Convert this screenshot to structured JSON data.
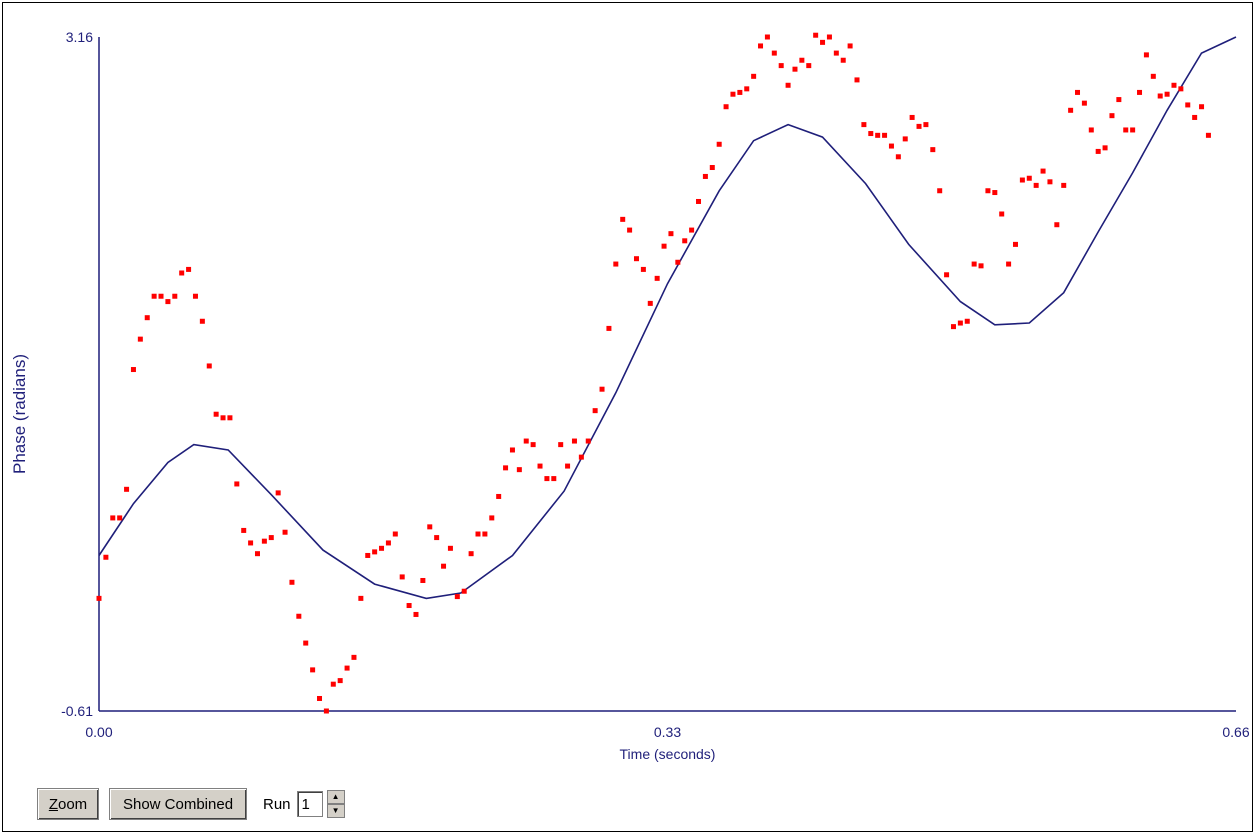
{
  "chart_data": {
    "type": "scatter",
    "xlabel": "Time (seconds)",
    "ylabel": "Phase (radians)",
    "xlim": [
      0.0,
      0.66
    ],
    "ylim": [
      -0.61,
      3.16
    ],
    "x_tick_labels": [
      "0.00",
      "0.33",
      "0.66"
    ],
    "y_tick_labels": [
      "-0.61",
      "3.16"
    ],
    "grid": false,
    "series": [
      {
        "kind": "points",
        "color": "#ff0000",
        "points": [
          [
            0.0,
            0.02
          ],
          [
            0.004,
            0.25
          ],
          [
            0.008,
            0.47
          ],
          [
            0.012,
            0.47
          ],
          [
            0.016,
            0.63
          ],
          [
            0.02,
            1.3
          ],
          [
            0.024,
            1.47
          ],
          [
            0.028,
            1.59
          ],
          [
            0.032,
            1.71
          ],
          [
            0.036,
            1.71
          ],
          [
            0.04,
            1.68
          ],
          [
            0.044,
            1.71
          ],
          [
            0.048,
            1.84
          ],
          [
            0.052,
            1.86
          ],
          [
            0.056,
            1.71
          ],
          [
            0.06,
            1.57
          ],
          [
            0.064,
            1.32
          ],
          [
            0.068,
            1.05
          ],
          [
            0.072,
            1.03
          ],
          [
            0.076,
            1.03
          ],
          [
            0.08,
            0.66
          ],
          [
            0.084,
            0.4
          ],
          [
            0.088,
            0.33
          ],
          [
            0.092,
            0.27
          ],
          [
            0.096,
            0.34
          ],
          [
            0.1,
            0.36
          ],
          [
            0.104,
            0.61
          ],
          [
            0.108,
            0.39
          ],
          [
            0.112,
            0.11
          ],
          [
            0.116,
            -0.08
          ],
          [
            0.12,
            -0.23
          ],
          [
            0.124,
            -0.38
          ],
          [
            0.128,
            -0.54
          ],
          [
            0.132,
            -0.61
          ],
          [
            0.136,
            -0.46
          ],
          [
            0.14,
            -0.44
          ],
          [
            0.144,
            -0.37
          ],
          [
            0.148,
            -0.31
          ],
          [
            0.152,
            0.02
          ],
          [
            0.156,
            0.26
          ],
          [
            0.16,
            0.28
          ],
          [
            0.164,
            0.3
          ],
          [
            0.168,
            0.33
          ],
          [
            0.172,
            0.38
          ],
          [
            0.176,
            0.14
          ],
          [
            0.18,
            -0.02
          ],
          [
            0.184,
            -0.07
          ],
          [
            0.188,
            0.12
          ],
          [
            0.192,
            0.42
          ],
          [
            0.196,
            0.36
          ],
          [
            0.2,
            0.2
          ],
          [
            0.204,
            0.3
          ],
          [
            0.208,
            0.03
          ],
          [
            0.212,
            0.06
          ],
          [
            0.216,
            0.27
          ],
          [
            0.22,
            0.38
          ],
          [
            0.224,
            0.38
          ],
          [
            0.228,
            0.47
          ],
          [
            0.232,
            0.59
          ],
          [
            0.236,
            0.75
          ],
          [
            0.24,
            0.85
          ],
          [
            0.244,
            0.74
          ],
          [
            0.248,
            0.9
          ],
          [
            0.252,
            0.88
          ],
          [
            0.256,
            0.76
          ],
          [
            0.26,
            0.69
          ],
          [
            0.264,
            0.69
          ],
          [
            0.268,
            0.88
          ],
          [
            0.272,
            0.76
          ],
          [
            0.276,
            0.9
          ],
          [
            0.28,
            0.81
          ],
          [
            0.284,
            0.9
          ],
          [
            0.288,
            1.07
          ],
          [
            0.292,
            1.19
          ],
          [
            0.296,
            1.53
          ],
          [
            0.3,
            1.89
          ],
          [
            0.304,
            2.14
          ],
          [
            0.308,
            2.08
          ],
          [
            0.312,
            1.92
          ],
          [
            0.316,
            1.86
          ],
          [
            0.32,
            1.67
          ],
          [
            0.324,
            1.81
          ],
          [
            0.328,
            1.99
          ],
          [
            0.332,
            2.06
          ],
          [
            0.336,
            1.9
          ],
          [
            0.34,
            2.02
          ],
          [
            0.344,
            2.08
          ],
          [
            0.348,
            2.24
          ],
          [
            0.352,
            2.38
          ],
          [
            0.356,
            2.43
          ],
          [
            0.36,
            2.56
          ],
          [
            0.364,
            2.77
          ],
          [
            0.368,
            2.84
          ],
          [
            0.372,
            2.85
          ],
          [
            0.376,
            2.87
          ],
          [
            0.38,
            2.94
          ],
          [
            0.384,
            3.11
          ],
          [
            0.388,
            3.16
          ],
          [
            0.392,
            3.07
          ],
          [
            0.396,
            3.0
          ],
          [
            0.4,
            2.89
          ],
          [
            0.404,
            2.98
          ],
          [
            0.408,
            3.03
          ],
          [
            0.412,
            3.0
          ],
          [
            0.416,
            3.17
          ],
          [
            0.42,
            3.13
          ],
          [
            0.424,
            3.16
          ],
          [
            0.428,
            3.07
          ],
          [
            0.432,
            3.03
          ],
          [
            0.436,
            3.11
          ],
          [
            0.44,
            2.92
          ],
          [
            0.444,
            2.67
          ],
          [
            0.448,
            2.62
          ],
          [
            0.452,
            2.61
          ],
          [
            0.456,
            2.61
          ],
          [
            0.46,
            2.55
          ],
          [
            0.464,
            2.49
          ],
          [
            0.468,
            2.59
          ],
          [
            0.472,
            2.71
          ],
          [
            0.476,
            2.66
          ],
          [
            0.48,
            2.67
          ],
          [
            0.484,
            2.53
          ],
          [
            0.488,
            2.3
          ],
          [
            0.492,
            1.83
          ],
          [
            0.496,
            1.54
          ],
          [
            0.5,
            1.56
          ],
          [
            0.504,
            1.57
          ],
          [
            0.508,
            1.89
          ],
          [
            0.512,
            1.88
          ],
          [
            0.516,
            2.3
          ],
          [
            0.52,
            2.29
          ],
          [
            0.524,
            2.17
          ],
          [
            0.528,
            1.89
          ],
          [
            0.532,
            2.0
          ],
          [
            0.536,
            2.36
          ],
          [
            0.54,
            2.37
          ],
          [
            0.544,
            2.33
          ],
          [
            0.548,
            2.41
          ],
          [
            0.552,
            2.35
          ],
          [
            0.556,
            2.11
          ],
          [
            0.56,
            2.33
          ],
          [
            0.564,
            2.75
          ],
          [
            0.568,
            2.85
          ],
          [
            0.572,
            2.79
          ],
          [
            0.576,
            2.64
          ],
          [
            0.58,
            2.52
          ],
          [
            0.584,
            2.54
          ],
          [
            0.588,
            2.72
          ],
          [
            0.592,
            2.81
          ],
          [
            0.596,
            2.64
          ],
          [
            0.6,
            2.64
          ],
          [
            0.604,
            2.85
          ],
          [
            0.608,
            3.06
          ],
          [
            0.612,
            2.94
          ],
          [
            0.616,
            2.83
          ],
          [
            0.62,
            2.84
          ],
          [
            0.624,
            2.89
          ],
          [
            0.628,
            2.87
          ],
          [
            0.632,
            2.78
          ],
          [
            0.636,
            2.71
          ],
          [
            0.64,
            2.77
          ],
          [
            0.644,
            2.61
          ]
        ]
      },
      {
        "kind": "curve",
        "color": "#1f1f7a",
        "points": [
          [
            0.0,
            0.26
          ],
          [
            0.02,
            0.55
          ],
          [
            0.04,
            0.78
          ],
          [
            0.055,
            0.88
          ],
          [
            0.075,
            0.85
          ],
          [
            0.1,
            0.6
          ],
          [
            0.13,
            0.29
          ],
          [
            0.16,
            0.1
          ],
          [
            0.19,
            0.02
          ],
          [
            0.21,
            0.05
          ],
          [
            0.24,
            0.26
          ],
          [
            0.27,
            0.62
          ],
          [
            0.3,
            1.17
          ],
          [
            0.33,
            1.78
          ],
          [
            0.36,
            2.3
          ],
          [
            0.38,
            2.58
          ],
          [
            0.4,
            2.67
          ],
          [
            0.42,
            2.6
          ],
          [
            0.445,
            2.34
          ],
          [
            0.47,
            2.0
          ],
          [
            0.5,
            1.68
          ],
          [
            0.52,
            1.55
          ],
          [
            0.54,
            1.56
          ],
          [
            0.56,
            1.73
          ],
          [
            0.58,
            2.07
          ],
          [
            0.6,
            2.4
          ],
          [
            0.62,
            2.75
          ],
          [
            0.64,
            3.07
          ],
          [
            0.66,
            3.16
          ]
        ]
      }
    ]
  },
  "toolbar": {
    "zoom_first": "Z",
    "zoom_rest": "oom",
    "show_combined_label": "Show Combined",
    "run_label": "Run",
    "run_value": "1",
    "spin_up": "▲",
    "spin_down": "▼"
  }
}
